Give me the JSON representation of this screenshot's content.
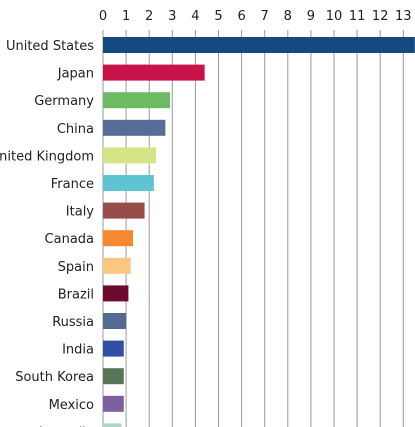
{
  "chart_data": {
    "type": "bar",
    "orientation": "horizontal",
    "x_ticks": [
      "0",
      "1",
      "2",
      "3",
      "4",
      "5",
      "6",
      "7",
      "8",
      "9",
      "10",
      "11",
      "12",
      "13"
    ],
    "xlim": [
      0,
      13
    ],
    "grid": true,
    "axis_position": "top",
    "categories": [
      "United States",
      "Japan",
      "Germany",
      "China",
      "United Kingdom",
      "France",
      "Italy",
      "Canada",
      "Spain",
      "Brazil",
      "Russia",
      "India",
      "South Korea",
      "Mexico",
      "Australia"
    ],
    "values": [
      13.5,
      4.4,
      2.9,
      2.7,
      2.3,
      2.2,
      1.8,
      1.3,
      1.2,
      1.1,
      1.0,
      0.9,
      0.9,
      0.9,
      0.8
    ],
    "colors": [
      "#15497f",
      "#c8134a",
      "#6cbb62",
      "#576d96",
      "#d3e586",
      "#5ec4d2",
      "#984d49",
      "#f6892f",
      "#fbc582",
      "#6e0a30",
      "#526c91",
      "#3050a7",
      "#567656",
      "#7e5fa0",
      "#aad9c9"
    ]
  }
}
